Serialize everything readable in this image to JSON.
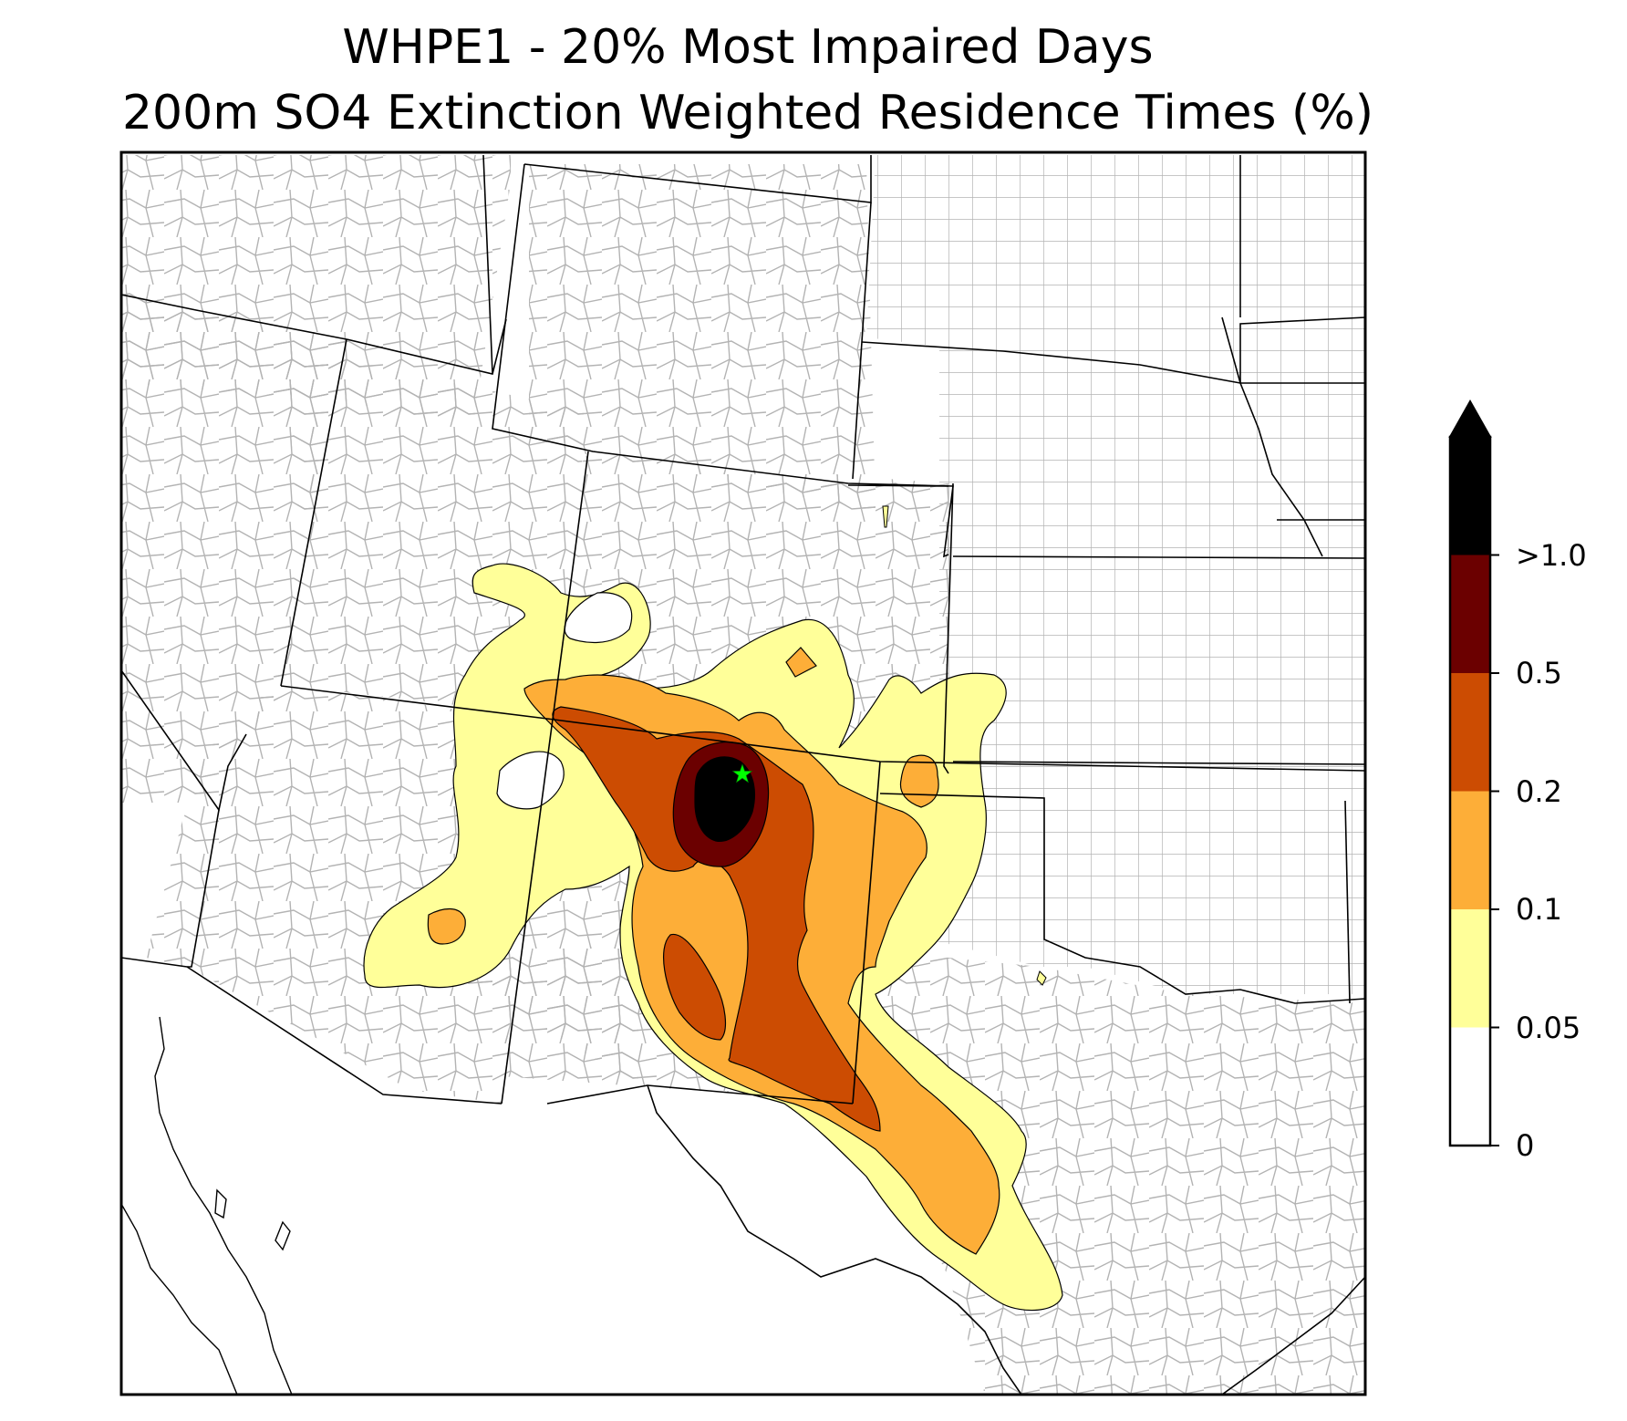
{
  "title": {
    "line1": "WHPE1 - 20% Most Impaired Days",
    "line2": "200m SO4 Extinction Weighted Residence Times (%)"
  },
  "receptor": {
    "site": "WHPE1",
    "marker": "star-icon",
    "color": "#00ff00"
  },
  "colorbar": {
    "extend": "max",
    "levels": [
      {
        "value": 0,
        "label": "0"
      },
      {
        "value": 0.05,
        "label": "0.05"
      },
      {
        "value": 0.1,
        "label": "0.1"
      },
      {
        "value": 0.2,
        "label": "0.2"
      },
      {
        "value": 0.5,
        "label": "0.5"
      },
      {
        "value": 1.0,
        "label": ">1.0"
      }
    ],
    "colors": [
      "#ffffff",
      "#ffff99",
      "#fdae38",
      "#cc4c02",
      "#6b0000",
      "#000000"
    ]
  },
  "map": {
    "land_color": "#ffffff",
    "state_border_color": "#000000",
    "county_border_color": "#aaaaaa"
  }
}
